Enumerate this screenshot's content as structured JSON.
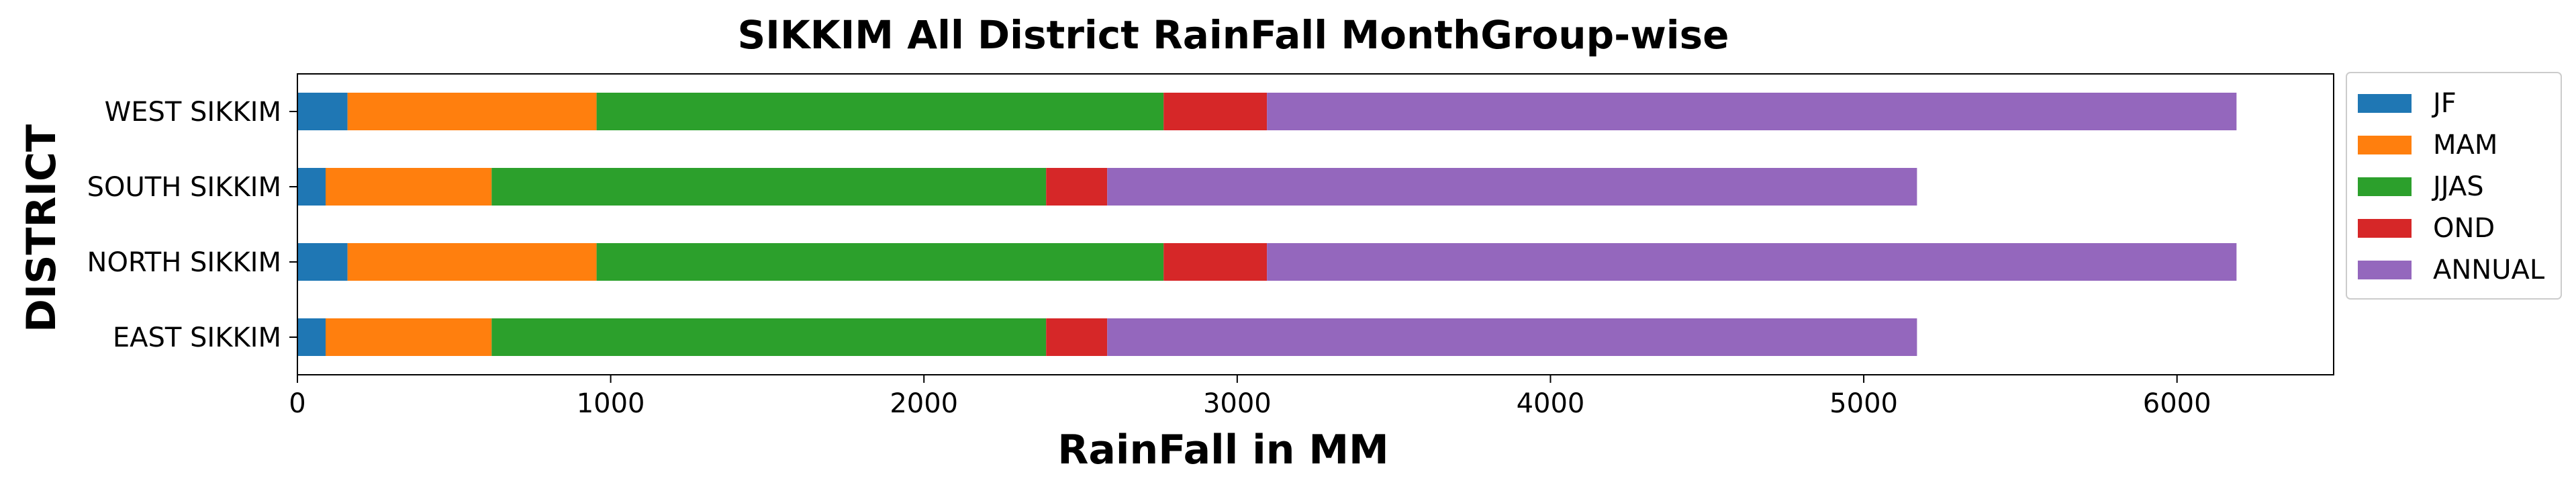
{
  "chart_data": {
    "type": "bar",
    "orientation": "horizontal",
    "stacked": true,
    "title": "SIKKIM All District RainFall MonthGroup-wise",
    "xlabel": "RainFall in MM",
    "ylabel": "DISTRICT",
    "xlim": [
      0,
      6500
    ],
    "xticks": [
      0,
      1000,
      2000,
      3000,
      4000,
      5000,
      6000
    ],
    "categories": [
      "EAST SIKKIM",
      "NORTH SIKKIM",
      "SOUTH SIKKIM",
      "WEST SIKKIM"
    ],
    "series": [
      {
        "name": "JF",
        "color": "#1f77b4",
        "values": [
          90,
          160,
          90,
          160
        ]
      },
      {
        "name": "MAM",
        "color": "#ff7f0e",
        "values": [
          530,
          795,
          530,
          795
        ]
      },
      {
        "name": "JJAS",
        "color": "#2ca02c",
        "values": [
          1770,
          1810,
          1770,
          1810
        ]
      },
      {
        "name": "OND",
        "color": "#d62728",
        "values": [
          195,
          330,
          195,
          330
        ]
      },
      {
        "name": "ANNUAL",
        "color": "#9467bd",
        "values": [
          2585,
          3095,
          2585,
          3095
        ]
      }
    ],
    "grid": false,
    "legend_position": "outside-right"
  }
}
